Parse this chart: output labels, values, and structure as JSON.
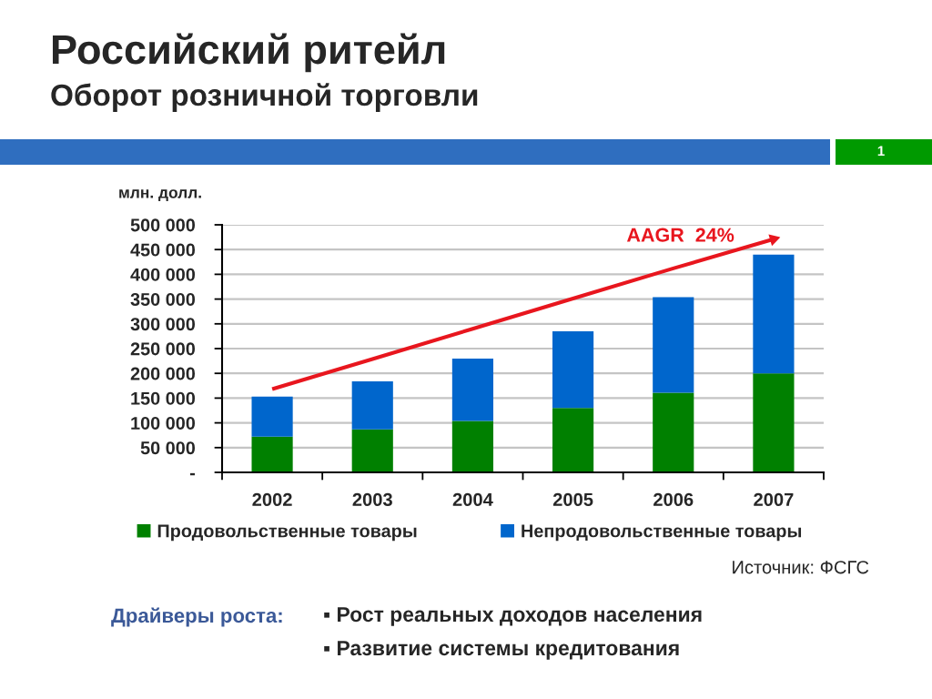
{
  "chart_data": {
    "type": "bar",
    "title": "Российский ритейл",
    "subtitle": "Оборот розничной торговли",
    "ylabel": "млн. долл.",
    "categories": [
      "2002",
      "2003",
      "2004",
      "2005",
      "2006",
      "2007"
    ],
    "stacked": true,
    "series": [
      {
        "name": "Продовольственные товары",
        "color": "#008000",
        "values": [
          72000,
          87000,
          104000,
          130000,
          161000,
          200000
        ]
      },
      {
        "name": "Непродовольственные товары",
        "color": "#0066cc",
        "values": [
          81000,
          97000,
          126000,
          155000,
          193000,
          240000
        ]
      },
      {
        "name": "AAGR  24%",
        "type": "line",
        "color": "#e8161e",
        "values": [
          168000,
          229000,
          290000,
          351000,
          412000,
          471000
        ]
      }
    ],
    "ylim": [
      0,
      500000
    ],
    "yticks": [
      {
        "value": 0,
        "label": "-"
      },
      {
        "value": 50000,
        "label": "50 000"
      },
      {
        "value": 100000,
        "label": "100 000"
      },
      {
        "value": 150000,
        "label": "150 000"
      },
      {
        "value": 200000,
        "label": "200 000"
      },
      {
        "value": 250000,
        "label": "250 000"
      },
      {
        "value": 300000,
        "label": "300 000"
      },
      {
        "value": 350000,
        "label": "350 000"
      },
      {
        "value": 400000,
        "label": "400 000"
      },
      {
        "value": 450000,
        "label": "450 000"
      },
      {
        "value": 500000,
        "label": "500 000"
      }
    ],
    "grid": "y",
    "legend": "bottom",
    "annotations": [
      "1",
      "Источник: ФСГС",
      "Драйверы роста:",
      "▪ Рост реальных доходов населения",
      "▪ Развитие системы кредитования"
    ]
  }
}
